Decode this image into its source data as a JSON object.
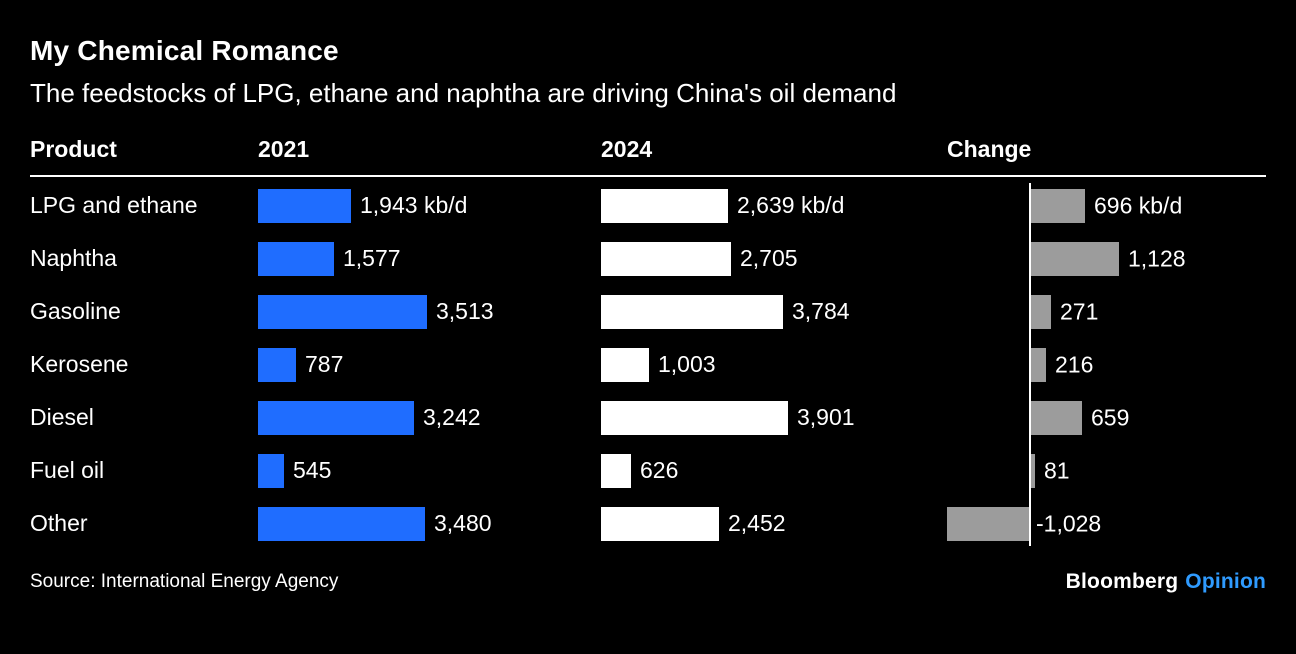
{
  "header": {
    "title": "My Chemical Romance",
    "subtitle": "The feedstocks of LPG, ethane and naphtha are driving China's oil demand"
  },
  "table": {
    "columns": [
      "Product",
      "2021",
      "2024",
      "Change"
    ]
  },
  "chart_data": {
    "type": "bar",
    "orientation": "horizontal",
    "title": "My Chemical Romance",
    "subtitle": "The feedstocks of LPG, ethane and naphtha are driving China's oil demand",
    "unit": "kb/d",
    "categories": [
      "LPG and ethane",
      "Naphtha",
      "Gasoline",
      "Kerosene",
      "Diesel",
      "Fuel oil",
      "Other"
    ],
    "series": [
      {
        "name": "2021",
        "values": [
          1943,
          1577,
          3513,
          787,
          3242,
          545,
          3480
        ],
        "labels": [
          "1,943 kb/d",
          "1,577",
          "3,513",
          "787",
          "3,242",
          "545",
          "3,480"
        ],
        "color": "#1f6dff"
      },
      {
        "name": "2024",
        "values": [
          2639,
          2705,
          3784,
          1003,
          3901,
          626,
          2452
        ],
        "labels": [
          "2,639 kb/d",
          "2,705",
          "3,784",
          "1,003",
          "3,901",
          "626",
          "2,452"
        ],
        "color": "#ffffff"
      },
      {
        "name": "Change",
        "values": [
          696,
          1128,
          271,
          216,
          659,
          81,
          -1028
        ],
        "labels": [
          "696 kb/d",
          "1,128",
          "271",
          "216",
          "659",
          "81",
          "-1,028"
        ],
        "color": "#9c9c9c"
      }
    ],
    "value_range_main": [
      0,
      3901
    ],
    "value_range_change": [
      -1028,
      1128
    ],
    "grid": false,
    "legend": "none"
  },
  "colors": {
    "background": "#000000",
    "text": "#ffffff",
    "bar_2021": "#1f6dff",
    "bar_2024": "#ffffff",
    "bar_change": "#9c9c9c",
    "opinion_blue": "#2f9bff"
  },
  "footer": {
    "source": "Source: International Energy Agency",
    "brand": "Bloomberg",
    "brand_suffix": "Opinion"
  }
}
